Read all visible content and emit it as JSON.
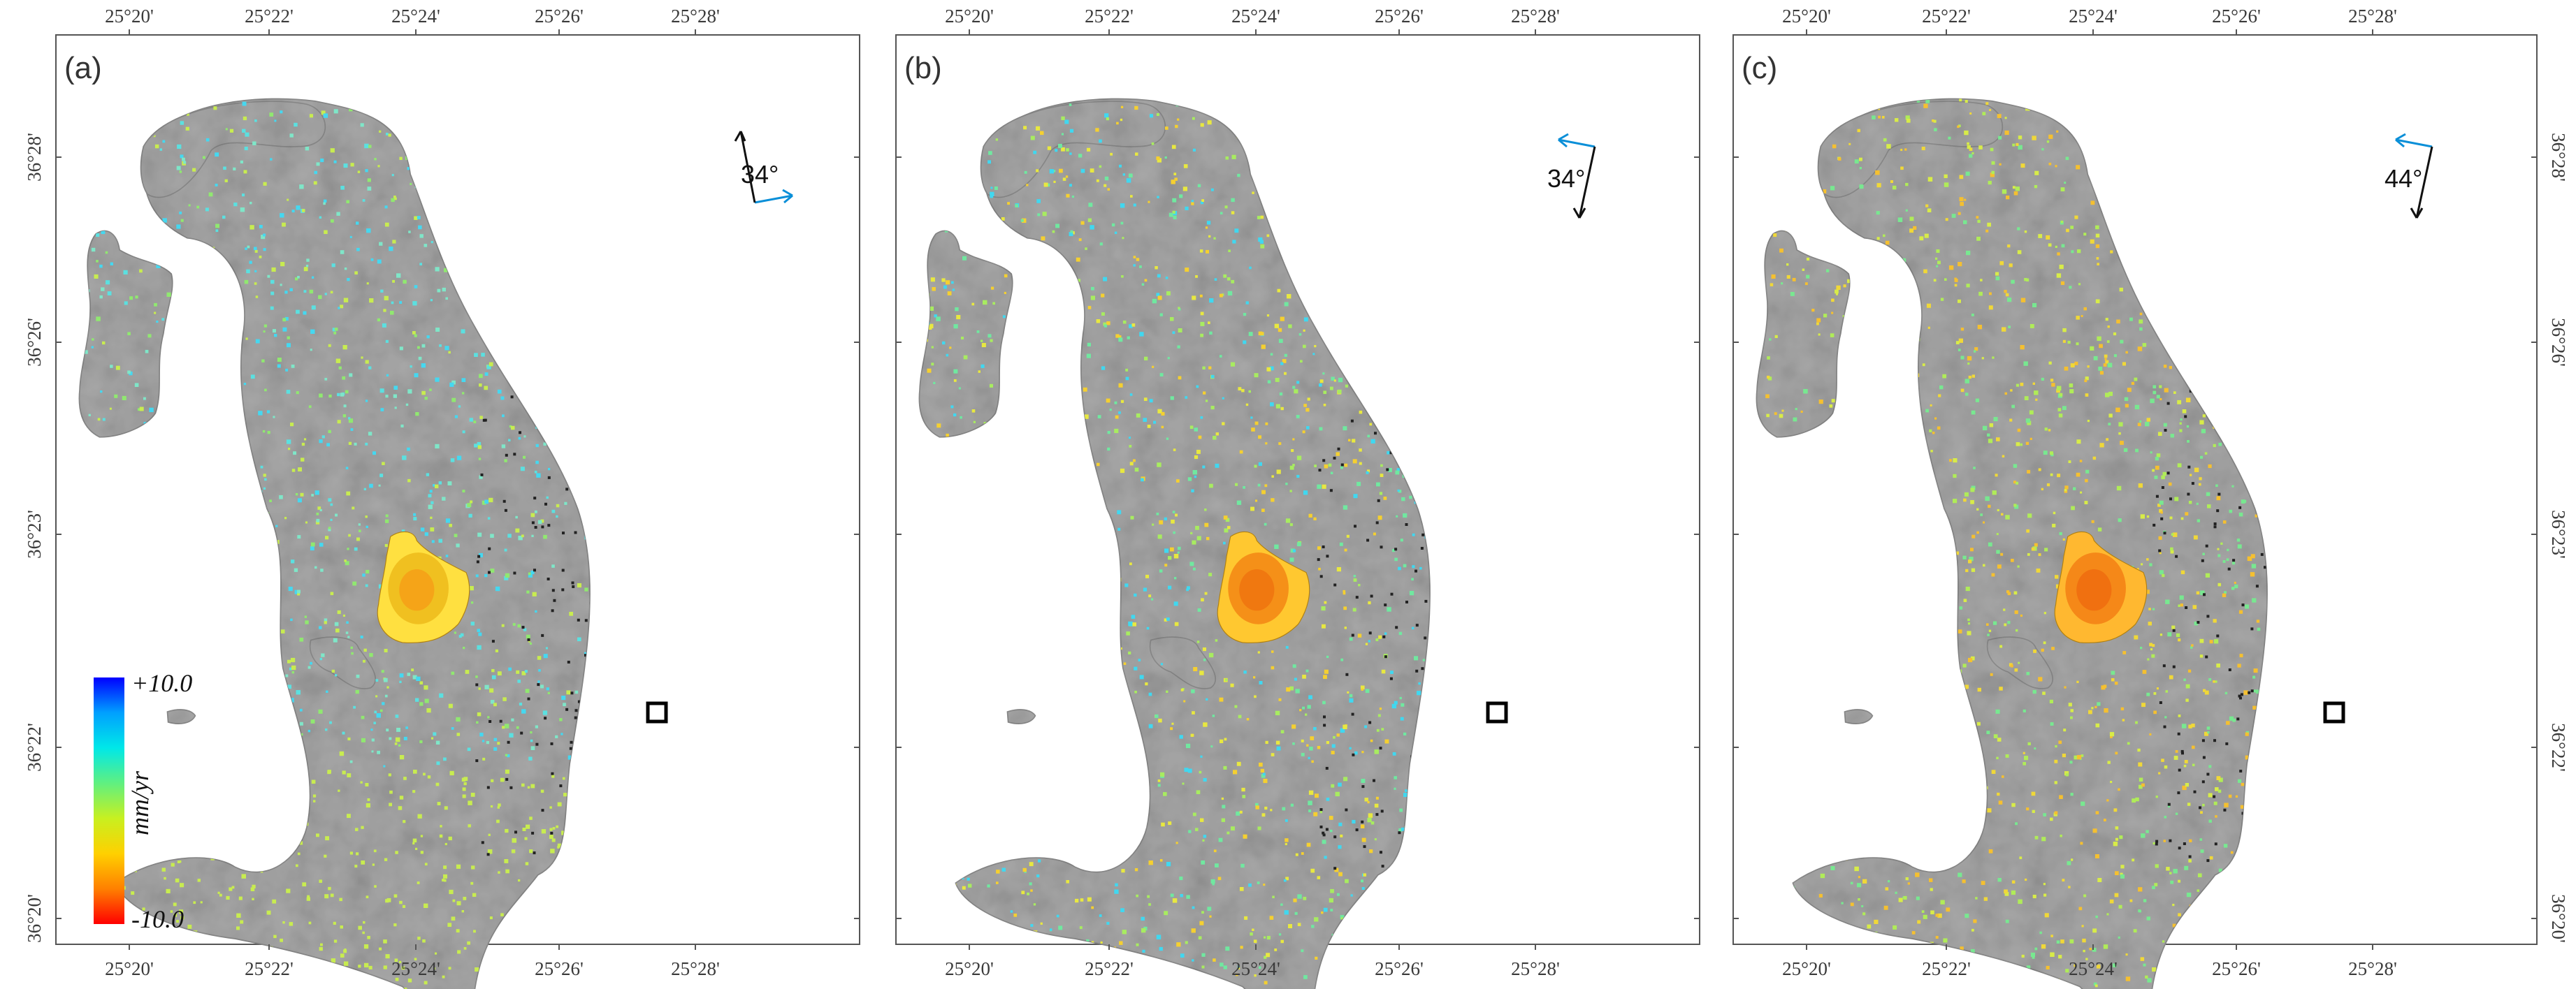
{
  "figure": {
    "panels": [
      {
        "id": "a",
        "label": "(a)",
        "angle": "34°",
        "arrow_orientation": "ascending",
        "color_palette": [
          "#7fe6c8",
          "#5be0e0",
          "#45d8f0",
          "#90e870",
          "#c8ec50"
        ],
        "volcano_colors": [
          "#f0c020",
          "#f5a418",
          "#ffe040"
        ]
      },
      {
        "id": "b",
        "label": "(b)",
        "angle": "34°",
        "arrow_orientation": "descending",
        "color_palette": [
          "#e8e840",
          "#f5d030",
          "#a8ec60",
          "#70e8a0",
          "#40d8f0"
        ],
        "volcano_colors": [
          "#f59018",
          "#f07810",
          "#ffc830"
        ]
      },
      {
        "id": "c",
        "label": "(c)",
        "angle": "44°",
        "arrow_orientation": "descending",
        "color_palette": [
          "#d8ec48",
          "#f0d838",
          "#b0ec58",
          "#78e890",
          "#f5c030"
        ],
        "volcano_colors": [
          "#f58818",
          "#f07010",
          "#ffb830"
        ]
      }
    ],
    "x_ticks": [
      "25°20'",
      "25°22'",
      "25°24'",
      "25°26'",
      "25°28'"
    ],
    "y_ticks": [
      "36°28'",
      "36°26'",
      "36°23'",
      "36°22'",
      "36°20'"
    ],
    "legend": {
      "max_label": "+10.0",
      "min_label": "-10.0",
      "unit": "mm/yr",
      "gradient": [
        "#0000ff",
        "#00a0ff",
        "#00e8e8",
        "#60f080",
        "#c8f020",
        "#ffd000",
        "#ff8000",
        "#ff0000"
      ]
    },
    "colors": {
      "terrain": "#a8a8a8",
      "ascending_arrow": "#0a8fd8",
      "los_arrow": "#111111",
      "frame": "#555555",
      "marker": "#000000"
    }
  }
}
